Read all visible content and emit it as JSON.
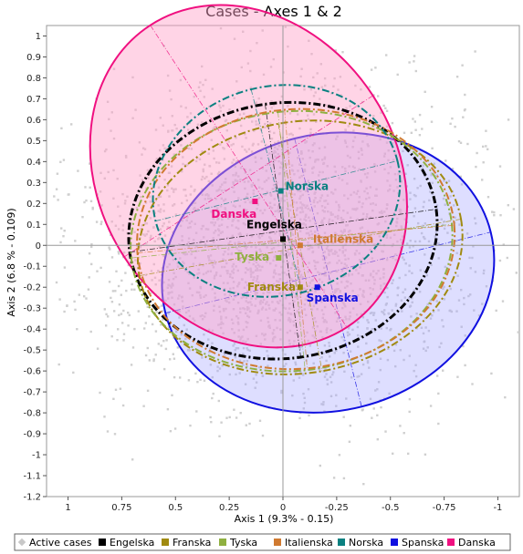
{
  "chart_data": {
    "type": "scatter",
    "title": "Cases - Axes 1 & 2",
    "xlabel": "Axis 1 (9.3% - 0.15)",
    "ylabel": "Axis 2 (6.8 % - 0.109)",
    "xlim": [
      1.1,
      -1.1
    ],
    "ylim": [
      -1.2,
      1.05
    ],
    "x_reversed": true,
    "xticks": [
      "1",
      "0.75",
      "0.5",
      "0.25",
      "0",
      "-0.25",
      "-0.5",
      "-0.75",
      "-1"
    ],
    "yticks": [
      "1",
      "0.9",
      "0.8",
      "0.7",
      "0.6",
      "0.5",
      "0.4",
      "0.3",
      "0.2",
      "0.1",
      "0",
      "-0.1",
      "-0.2",
      "-0.3",
      "-0.4",
      "-0.5",
      "-0.6",
      "-0.7",
      "-0.8",
      "-0.9",
      "-1",
      "-1.1",
      "-1.2"
    ],
    "grid": false,
    "legend_position": "bottom",
    "legend": [
      {
        "name": "Active cases",
        "color": "#c8c8c8",
        "marker": "diamond"
      },
      {
        "name": "Engelska",
        "color": "#000000",
        "marker": "square"
      },
      {
        "name": "Franska",
        "color": "#a08a10",
        "marker": "square"
      },
      {
        "name": "Tyska",
        "color": "#8fb040",
        "marker": "square"
      },
      {
        "name": "Italienska",
        "color": "#d07a30",
        "marker": "square"
      },
      {
        "name": "Norska",
        "color": "#0a8080",
        "marker": "square"
      },
      {
        "name": "Spanska",
        "color": "#1010e0",
        "marker": "square"
      },
      {
        "name": "Danska",
        "color": "#f01080",
        "marker": "square"
      }
    ],
    "series": [
      {
        "name": "Engelska",
        "x": 0.0,
        "y": 0.03,
        "color": "#000000",
        "ellipse": {
          "cx": 0.0,
          "cy": 0.07,
          "rx": 0.72,
          "ry": 0.61,
          "angle": -8,
          "dash": "dashdot",
          "width": 3
        }
      },
      {
        "name": "Franska",
        "x": -0.08,
        "y": -0.2,
        "color": "#a08a10",
        "ellipse": {
          "cx": -0.08,
          "cy": -0.01,
          "rx": 0.76,
          "ry": 0.6,
          "angle": -10,
          "dash": "dashdot",
          "width": 2
        }
      },
      {
        "name": "Tyska",
        "x": 0.02,
        "y": -0.06,
        "color": "#8fb040",
        "ellipse": {
          "cx": -0.04,
          "cy": 0.02,
          "rx": 0.75,
          "ry": 0.62,
          "angle": -6,
          "dash": "dashdot",
          "width": 2
        }
      },
      {
        "name": "Italienska",
        "x": -0.08,
        "y": 0.0,
        "color": "#d07a30",
        "ellipse": {
          "cx": -0.06,
          "cy": 0.03,
          "rx": 0.74,
          "ry": 0.62,
          "angle": -5,
          "dash": "dashdot",
          "width": 2
        }
      },
      {
        "name": "Norska",
        "x": 0.01,
        "y": 0.26,
        "color": "#0a8080",
        "ellipse": {
          "cx": 0.03,
          "cy": 0.26,
          "rx": 0.58,
          "ry": 0.5,
          "angle": -14,
          "dash": "dashdot",
          "width": 2
        }
      },
      {
        "name": "Spanska",
        "x": -0.16,
        "y": -0.2,
        "color": "#1010e0",
        "ellipse": {
          "cx": -0.21,
          "cy": -0.13,
          "rx": 0.78,
          "ry": 0.66,
          "angle": -14,
          "dash": "solid",
          "width": 2,
          "fill": "rgba(160,160,255,0.35)"
        }
      },
      {
        "name": "Danska",
        "x": 0.13,
        "y": 0.21,
        "color": "#f01080",
        "ellipse": {
          "cx": 0.16,
          "cy": 0.33,
          "rx": 0.69,
          "ry": 0.86,
          "angle": -33,
          "dash": "solid",
          "width": 2,
          "fill": "rgba(255,160,200,0.45)"
        }
      }
    ],
    "active_cases": {
      "count": 2400,
      "seed": 7,
      "center": [
        0.0,
        0.0
      ],
      "sx": 0.45,
      "sy": 0.38
    }
  }
}
